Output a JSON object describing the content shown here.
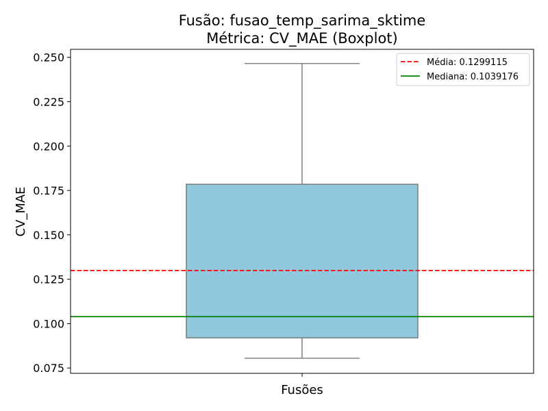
{
  "chart_data": {
    "type": "box",
    "title": "Fusão: fusao_temp_sarima_sktime",
    "subtitle": "Métrica: CV_MAE (Boxplot)",
    "xlabel": "Fusões",
    "ylabel": "CV_MAE",
    "ylim": [
      0.072,
      0.2545
    ],
    "yticks": [
      0.075,
      0.1,
      0.125,
      0.15,
      0.175,
      0.2,
      0.225,
      0.25
    ],
    "ytick_labels": [
      "0.075",
      "0.100",
      "0.125",
      "0.150",
      "0.175",
      "0.200",
      "0.225",
      "0.250"
    ],
    "grid": false,
    "legend_position": "top-right",
    "box": {
      "min": 0.0805,
      "q1": 0.092,
      "median": 0.1039176,
      "q3": 0.1785,
      "max": 0.2465,
      "fill_color": "#92c8de",
      "edge_color": "#6b6b6b"
    },
    "reference_lines": [
      {
        "label": "Média: 0.1299115",
        "value": 0.1299115,
        "color": "#ff0000",
        "style": "dashed"
      },
      {
        "label": "Mediana: 0.1039176",
        "value": 0.1039176,
        "color": "#008000",
        "style": "solid"
      }
    ]
  }
}
